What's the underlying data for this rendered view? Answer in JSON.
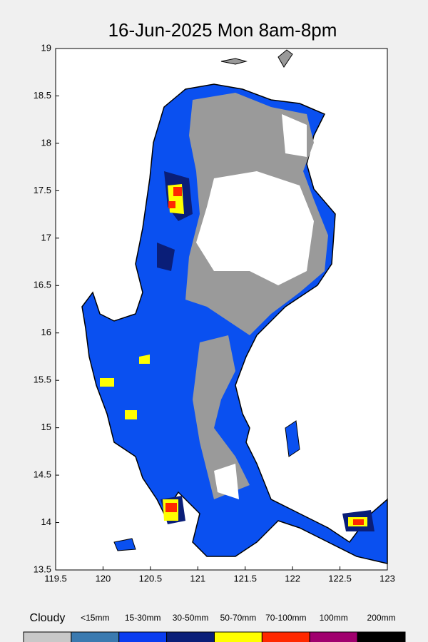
{
  "chart_data": {
    "type": "map",
    "title": "16-Jun-2025 Mon 8am-8pm",
    "xlim": [
      119.5,
      123
    ],
    "ylim": [
      13.5,
      19
    ],
    "xticks": [
      119.5,
      120,
      120.5,
      121,
      121.5,
      122,
      122.5,
      123
    ],
    "yticks": [
      13.5,
      14,
      14.5,
      15,
      15.5,
      16,
      16.5,
      17,
      17.5,
      18,
      18.5,
      19
    ],
    "legend": [
      {
        "label": "Cloudy",
        "color": "#c8c8c8"
      },
      {
        "label": "<15mm",
        "color": "#3a7ab0"
      },
      {
        "label": "15-30mm",
        "color": "#0a3cf0"
      },
      {
        "label": "30-50mm",
        "color": "#0a1e78"
      },
      {
        "label": "50-70mm",
        "color": "#ffff00"
      },
      {
        "label": "70-100mm",
        "color": "#ff2800"
      },
      {
        "label": "100mm",
        "color": "#a0006e"
      },
      {
        "label": "200mm",
        "color": "#000000"
      }
    ]
  }
}
